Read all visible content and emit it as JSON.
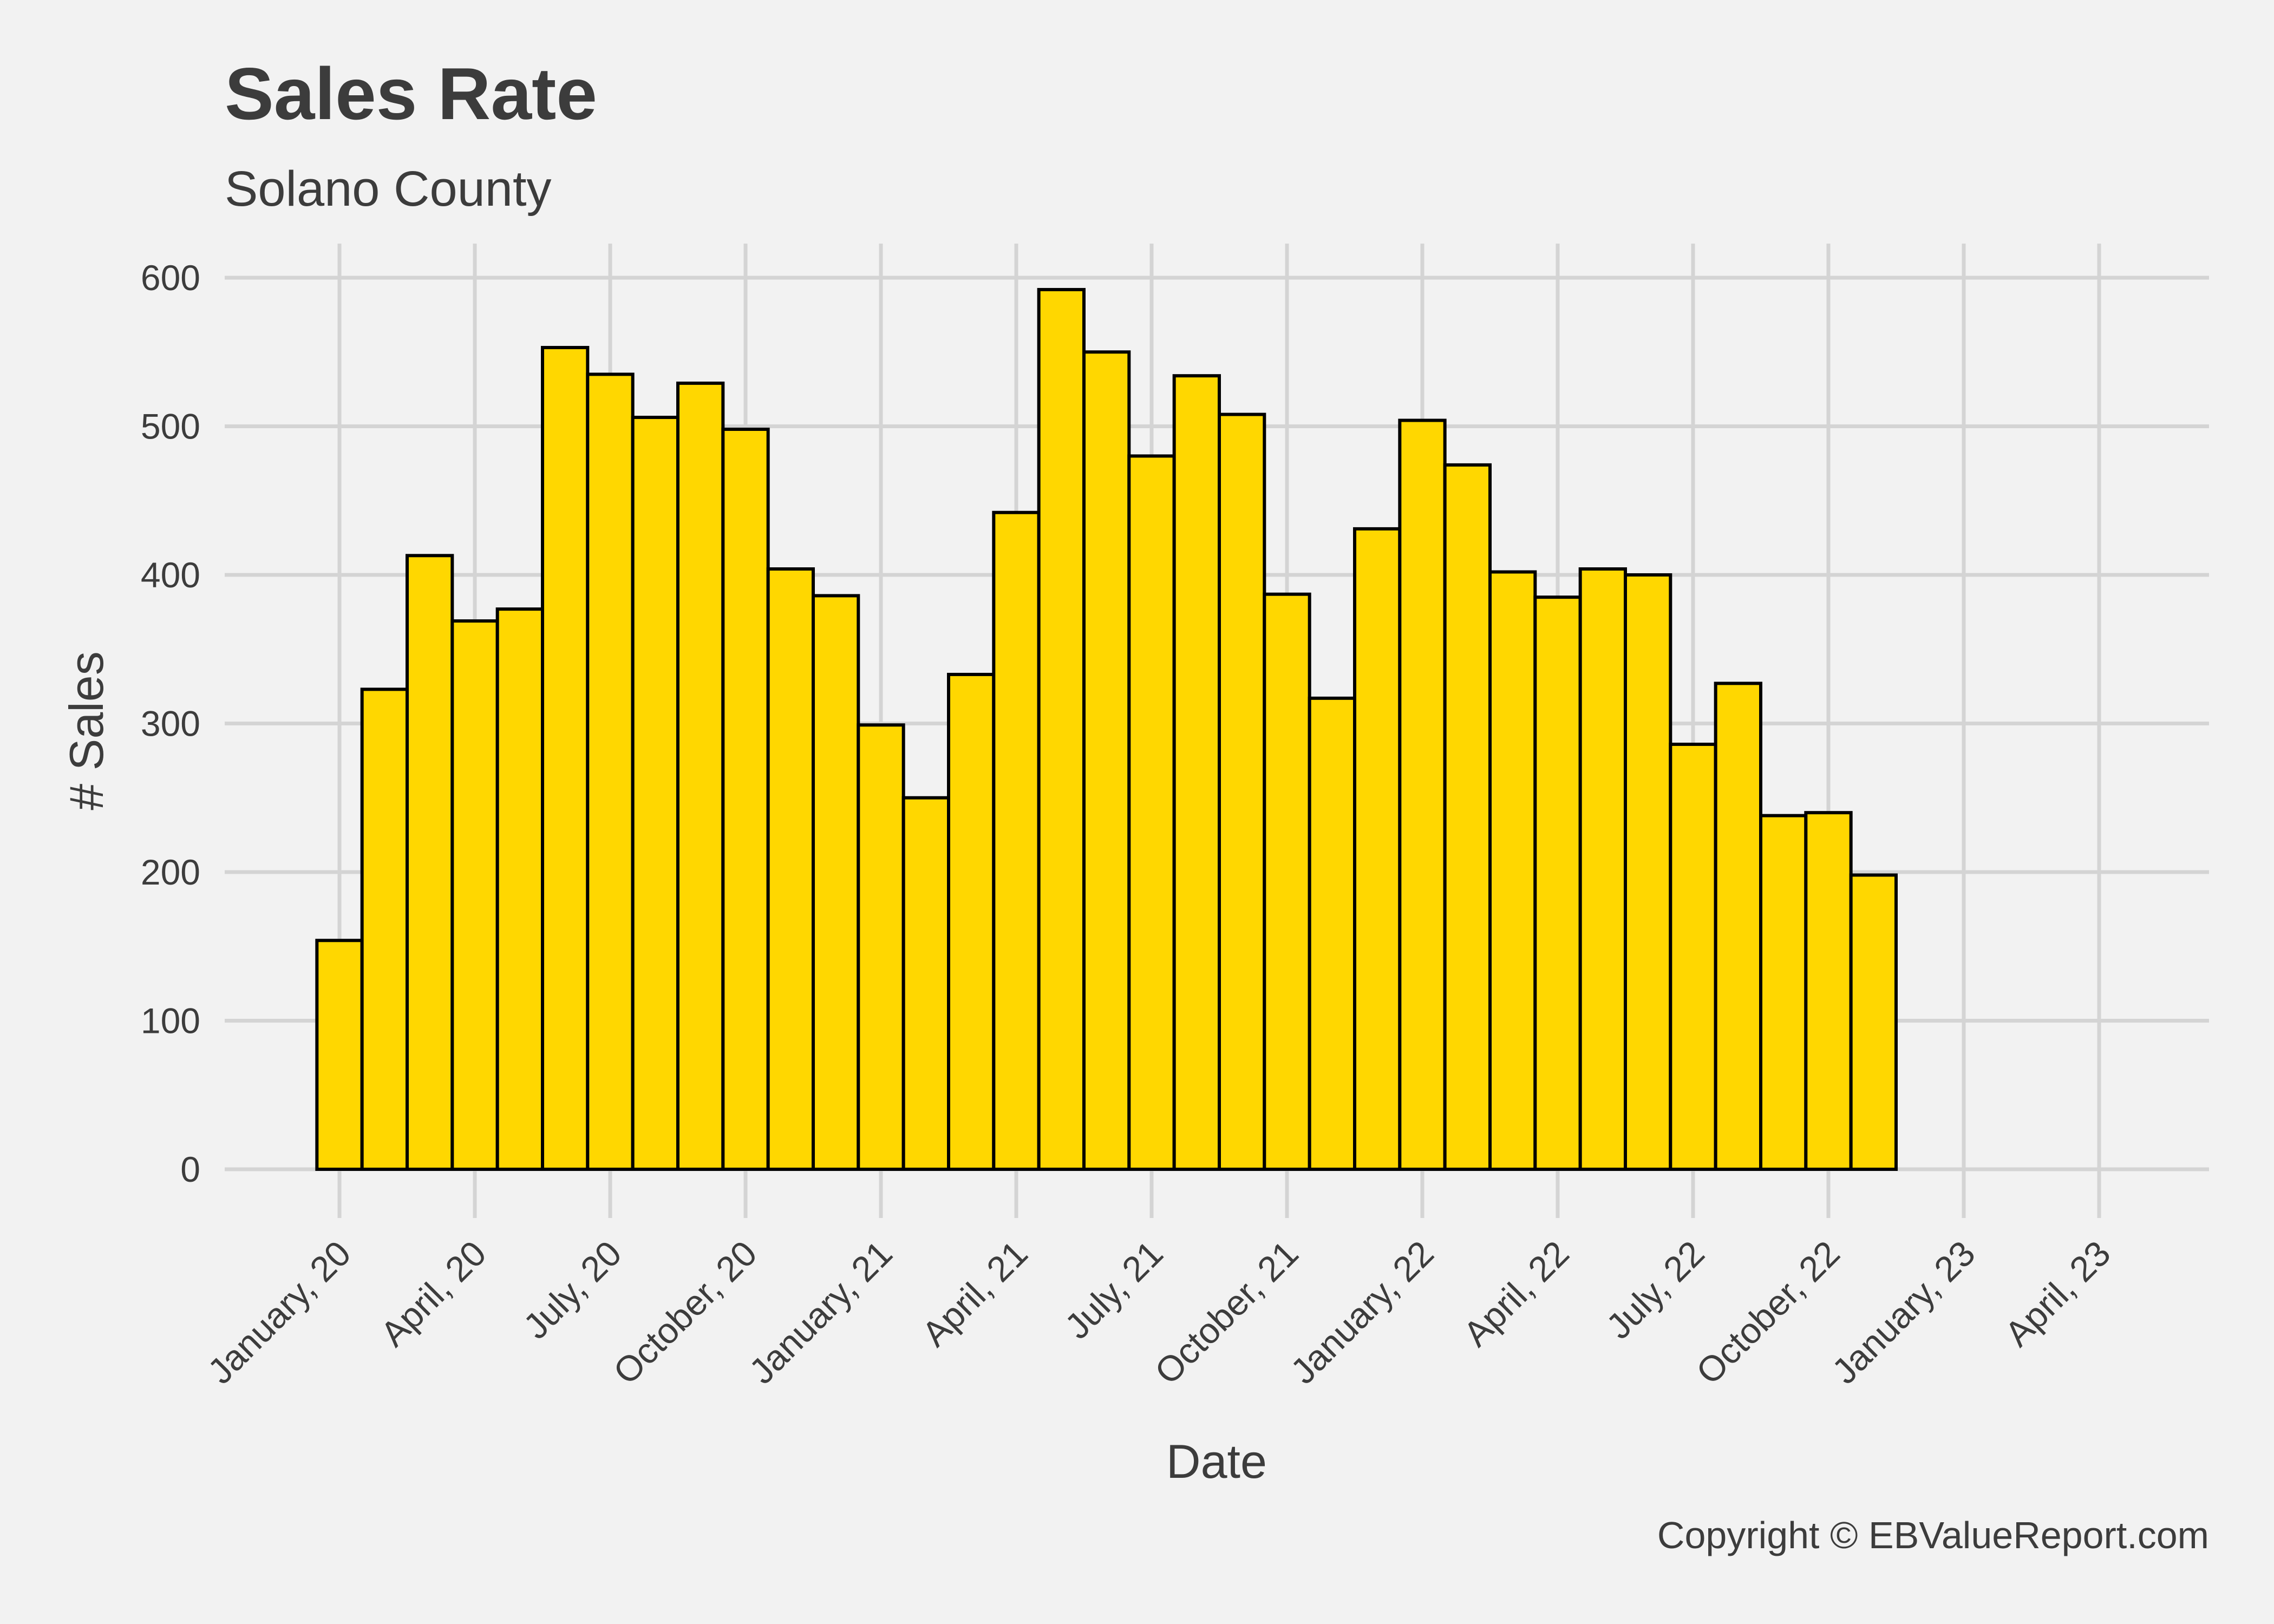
{
  "chart_data": {
    "type": "bar",
    "title": "Sales Rate",
    "subtitle": "Solano County",
    "xlabel": "Date",
    "ylabel": "# Sales",
    "caption": "Copyright  © EBValueReport.com",
    "ylim": [
      0,
      600
    ],
    "yticks": [
      0,
      100,
      200,
      300,
      400,
      500,
      600
    ],
    "grid": true,
    "x_start": "2020-01",
    "x_end": "2023-04",
    "xtick_labels": [
      "January, 20",
      "April, 20",
      "July, 20",
      "October, 20",
      "January, 21",
      "April, 21",
      "July, 21",
      "October, 21",
      "January, 22",
      "April, 22",
      "July, 22",
      "October, 22",
      "January, 23",
      "April, 23"
    ],
    "categories": [
      "2020-01",
      "2020-02",
      "2020-03",
      "2020-04",
      "2020-05",
      "2020-06",
      "2020-07",
      "2020-08",
      "2020-09",
      "2020-10",
      "2020-11",
      "2020-12",
      "2021-01",
      "2021-02",
      "2021-03",
      "2021-04",
      "2021-05",
      "2021-06",
      "2021-07",
      "2021-08",
      "2021-09",
      "2021-10",
      "2021-11",
      "2021-12",
      "2022-01",
      "2022-02",
      "2022-03",
      "2022-04",
      "2022-05",
      "2022-06",
      "2022-07",
      "2022-08",
      "2022-09",
      "2022-10",
      "2022-11",
      "2022-12",
      "2023-01",
      "2023-02",
      "2023-03",
      "2023-04"
    ],
    "values": [
      154,
      323,
      413,
      369,
      377,
      553,
      535,
      506,
      529,
      498,
      404,
      386,
      299,
      250,
      333,
      442,
      592,
      550,
      480,
      534,
      508,
      387,
      317,
      431,
      504,
      474,
      402,
      385,
      404,
      400,
      286,
      327,
      238,
      240,
      198,
      0,
      0,
      0,
      0,
      0
    ],
    "bar_color": "#ffd700",
    "bar_outline": "#000000",
    "grid_color": "#d4d4d4",
    "background": "#f2f2f2"
  }
}
